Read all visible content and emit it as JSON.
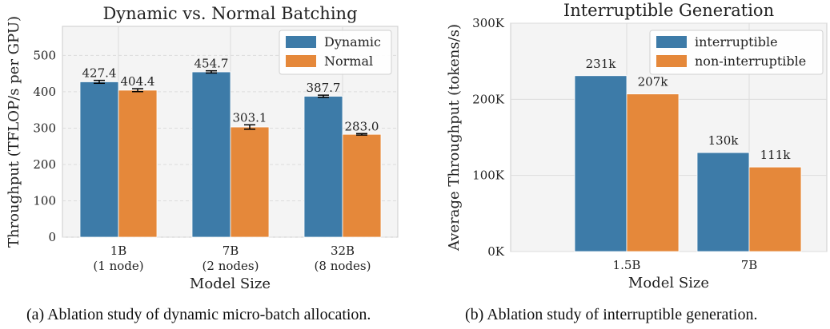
{
  "colors": {
    "primary": "#3d7ba8",
    "secondary": "#e5883a",
    "grid": "#dcdcdc",
    "axes_bg": "#f4f4f4"
  },
  "chart_data": [
    {
      "type": "bar",
      "title": "Dynamic vs. Normal Batching",
      "xlabel": "Model Size",
      "ylabel": "Throughput (TFLOP/s per GPU)",
      "categories": [
        "1B",
        "7B",
        "32B"
      ],
      "category_sublabels": [
        "(1 node)",
        "(2 nodes)",
        "(8 nodes)"
      ],
      "ylim": [
        0,
        580
      ],
      "yticks": [
        0,
        100,
        200,
        300,
        400,
        500
      ],
      "ytick_labels": [
        "0",
        "100",
        "200",
        "300",
        "400",
        "500"
      ],
      "grid": true,
      "legend_position": "top-right",
      "series": [
        {
          "name": "Dynamic",
          "values": [
            427.4,
            454.7,
            387.7
          ],
          "labels": [
            "427.4",
            "454.7",
            "387.7"
          ],
          "error": [
            4,
            3,
            3
          ]
        },
        {
          "name": "Normal",
          "values": [
            404.4,
            303.1,
            283.0
          ],
          "labels": [
            "404.4",
            "303.1",
            "283.0"
          ],
          "error": [
            4,
            6,
            2
          ]
        }
      ],
      "caption": "(a) Ablation study of dynamic micro-batch allocation."
    },
    {
      "type": "bar",
      "title": "Interruptible Generation",
      "xlabel": "Model Size",
      "ylabel": "Average Throughput (tokens/s)",
      "categories": [
        "1.5B",
        "7B"
      ],
      "ylim": [
        0,
        300000
      ],
      "yticks": [
        0,
        100000,
        200000,
        300000
      ],
      "ytick_labels": [
        "0K",
        "100K",
        "200K",
        "300K"
      ],
      "grid": true,
      "legend_position": "top-right",
      "series": [
        {
          "name": "interruptible",
          "values": [
            231000,
            130000
          ],
          "labels": [
            "231k",
            "130k"
          ]
        },
        {
          "name": "non-interruptible",
          "values": [
            207000,
            111000
          ],
          "labels": [
            "207k",
            "111k"
          ]
        }
      ],
      "caption": "(b) Ablation study of interruptible generation."
    }
  ]
}
